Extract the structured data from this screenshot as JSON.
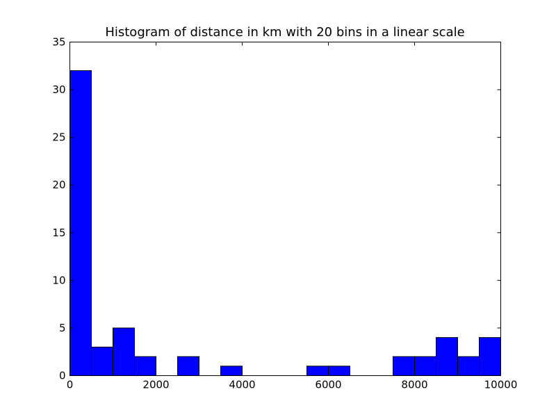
{
  "chart_data": {
    "type": "bar",
    "title": "Histogram of distance in km with 20 bins in a linear scale",
    "xlabel": "",
    "ylabel": "",
    "bin_edges": [
      0,
      500,
      1000,
      1500,
      2000,
      2500,
      3000,
      3500,
      4000,
      4500,
      5000,
      5500,
      6000,
      6500,
      7000,
      7500,
      8000,
      8500,
      9000,
      9500,
      10000
    ],
    "values": [
      32,
      3,
      5,
      2,
      0,
      2,
      0,
      1,
      0,
      0,
      0,
      1,
      1,
      0,
      0,
      2,
      2,
      4,
      2,
      4
    ],
    "xlim": [
      0,
      10000
    ],
    "ylim": [
      0,
      35
    ],
    "xticks": [
      0,
      2000,
      4000,
      6000,
      8000,
      10000
    ],
    "xtick_labels": [
      "0",
      "2000",
      "4000",
      "6000",
      "8000",
      "10000"
    ],
    "yticks": [
      0,
      5,
      10,
      15,
      20,
      25,
      30,
      35
    ],
    "ytick_labels": [
      "0",
      "5",
      "10",
      "15",
      "20",
      "25",
      "30",
      "35"
    ],
    "grid": false,
    "bar_color": "#0000ff",
    "edge_color": "#000000"
  }
}
